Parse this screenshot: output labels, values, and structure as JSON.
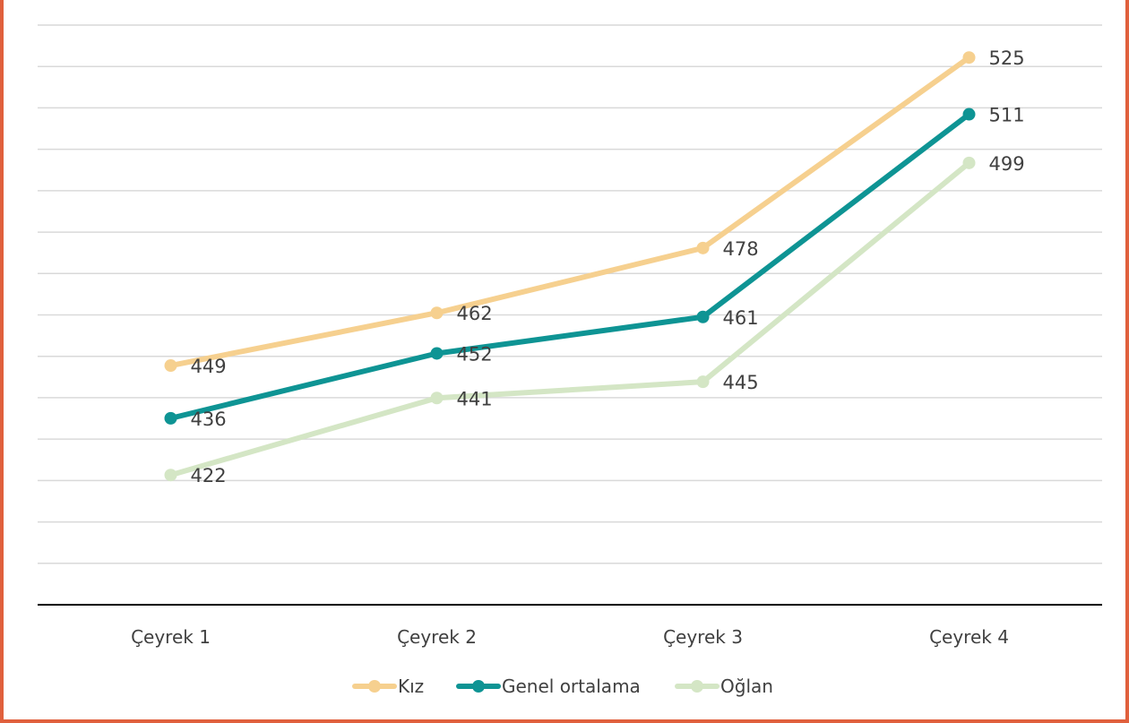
{
  "chart_data": {
    "type": "line",
    "categories": [
      "Çeyrek 1",
      "Çeyrek 2",
      "Çeyrek 3",
      "Çeyrek 4"
    ],
    "series": [
      {
        "name": "Kız",
        "values": [
          449,
          462,
          478,
          525
        ],
        "color": "#f6d08f"
      },
      {
        "name": "Genel ortalama",
        "values": [
          436,
          452,
          461,
          511
        ],
        "color": "#0e9494"
      },
      {
        "name": "Oğlan",
        "values": [
          422,
          441,
          445,
          499
        ],
        "color": "#d4e6c5"
      }
    ],
    "data_labels": true,
    "ylim": [
      390,
      533
    ],
    "grid": true,
    "legend": "bottom"
  }
}
